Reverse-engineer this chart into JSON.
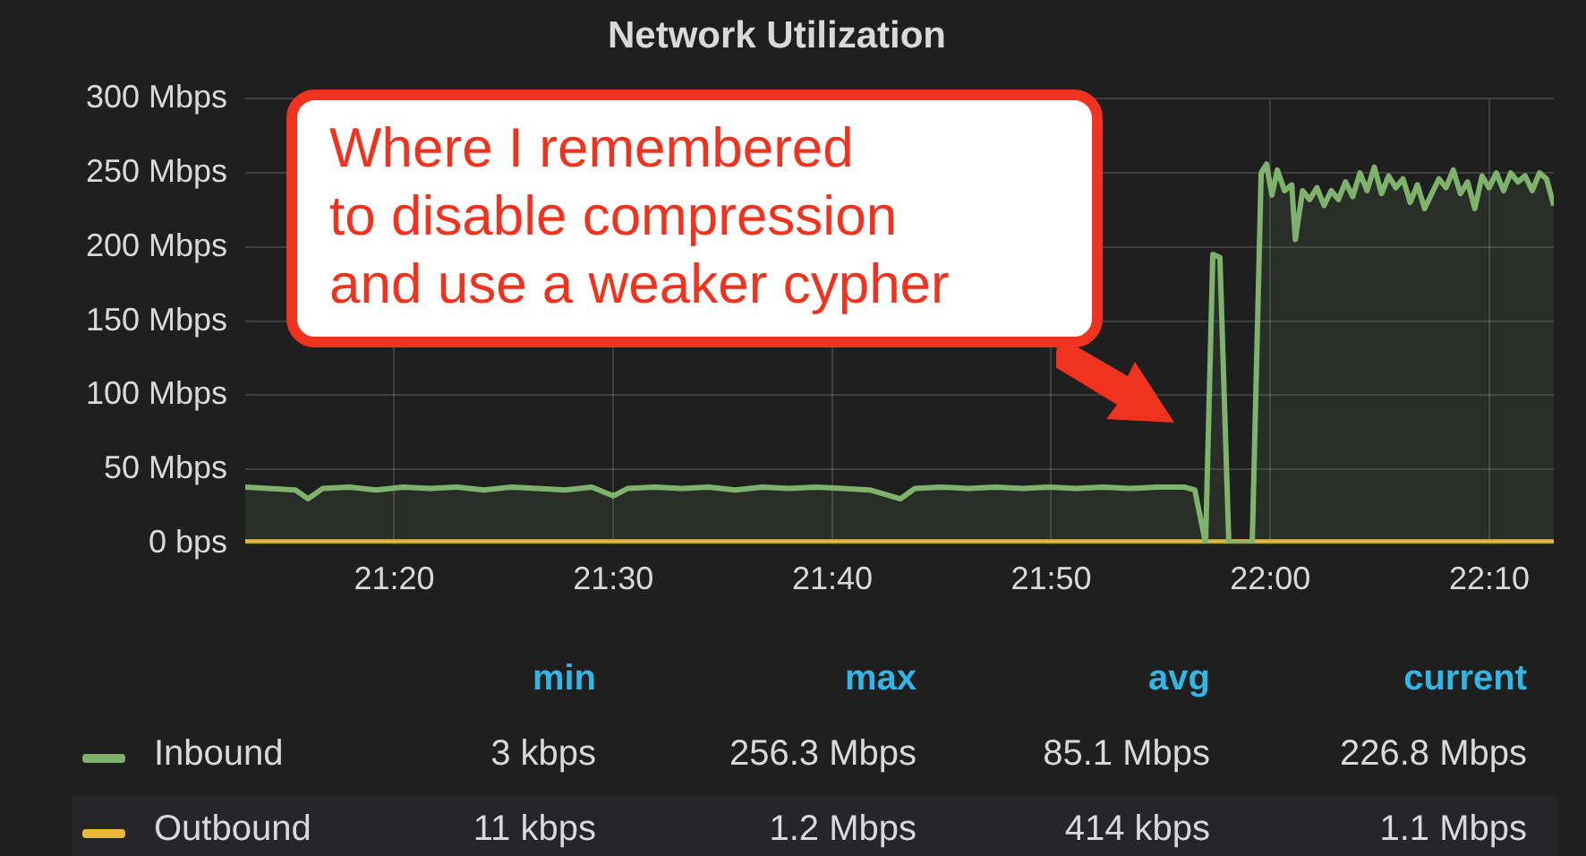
{
  "chart_data": {
    "type": "line",
    "title": "Network Utilization",
    "xlim": [
      21.2199,
      22.2158
    ],
    "xticks": [
      {
        "value": 21.3333,
        "label": "21:20"
      },
      {
        "value": 21.5,
        "label": "21:30"
      },
      {
        "value": 21.6667,
        "label": "21:40"
      },
      {
        "value": 21.8333,
        "label": "21:50"
      },
      {
        "value": 22.0,
        "label": "22:00"
      },
      {
        "value": 22.1667,
        "label": "22:10"
      }
    ],
    "ylim": [
      0,
      300
    ],
    "yticks": [
      {
        "value": 0,
        "label": "0 bps"
      },
      {
        "value": 50,
        "label": "50 Mbps"
      },
      {
        "value": 100,
        "label": "100 Mbps"
      },
      {
        "value": 150,
        "label": "150 Mbps"
      },
      {
        "value": 200,
        "label": "200 Mbps"
      },
      {
        "value": 250,
        "label": "250 Mbps"
      },
      {
        "value": 300,
        "label": "300 Mbps"
      }
    ],
    "grid": true,
    "legend": "bottom",
    "marker": "none",
    "line_style": "solid",
    "series": [
      {
        "name": "Inbound",
        "type": "area",
        "color": "#7eb26d",
        "x": [
          21.2199,
          21.2377,
          21.2582,
          21.2677,
          21.2787,
          21.2991,
          21.3196,
          21.3401,
          21.3606,
          21.3811,
          21.4016,
          21.4221,
          21.4426,
          21.4631,
          21.4836,
          21.5,
          21.5109,
          21.5314,
          21.5519,
          21.5724,
          21.5929,
          21.6134,
          21.6338,
          21.6543,
          21.6748,
          21.6953,
          21.7185,
          21.7295,
          21.75,
          21.7705,
          21.791,
          21.8114,
          21.8319,
          21.8524,
          21.8729,
          21.8934,
          21.9139,
          21.9344,
          21.9426,
          21.9508,
          21.9563,
          21.9617,
          21.9685,
          21.9863,
          21.9931,
          21.9972,
          22.0013,
          22.0054,
          22.0109,
          22.0164,
          22.0191,
          22.0246,
          22.03,
          22.0355,
          22.041,
          22.0464,
          22.0519,
          22.0573,
          22.0628,
          22.0683,
          22.0737,
          22.0792,
          22.0847,
          22.0901,
          22.0956,
          22.1011,
          22.1065,
          22.112,
          22.1175,
          22.1229,
          22.1284,
          22.1338,
          22.1393,
          22.1448,
          22.1502,
          22.1557,
          22.1612,
          22.1666,
          22.1721,
          22.1776,
          22.183,
          22.1885,
          22.194,
          22.1994,
          22.2049,
          22.2103,
          22.2158
        ],
        "values": [
          38,
          37,
          36,
          30,
          37,
          38,
          36,
          38,
          37,
          38,
          36,
          38,
          37,
          36,
          38,
          32,
          37,
          38,
          37,
          38,
          36,
          38,
          37,
          38,
          37,
          36,
          30,
          37,
          38,
          37,
          38,
          37,
          38,
          37,
          38,
          37,
          38,
          38,
          36,
          0,
          195,
          193,
          0,
          0,
          250,
          256,
          235,
          252,
          238,
          242,
          205,
          238,
          232,
          240,
          228,
          238,
          232,
          244,
          234,
          250,
          238,
          254,
          236,
          248,
          240,
          246,
          230,
          242,
          226,
          236,
          246,
          240,
          252,
          236,
          244,
          226,
          248,
          240,
          250,
          238,
          250,
          244,
          248,
          238,
          250,
          246,
          228
        ]
      },
      {
        "name": "Outbound",
        "type": "line",
        "color": "#eab839",
        "x": [
          21.2199,
          22.2158
        ],
        "values": [
          1,
          1
        ]
      }
    ],
    "annotations": [
      "Where I remembered\nto disable compression\nand use a weaker cypher",
      "min",
      "max",
      "avg",
      "current",
      "3 kbps",
      "256.3 Mbps",
      "85.1 Mbps",
      "226.8 Mbps",
      "11 kbps",
      "1.2 Mbps",
      "414 kbps",
      "1.1 Mbps"
    ]
  }
}
